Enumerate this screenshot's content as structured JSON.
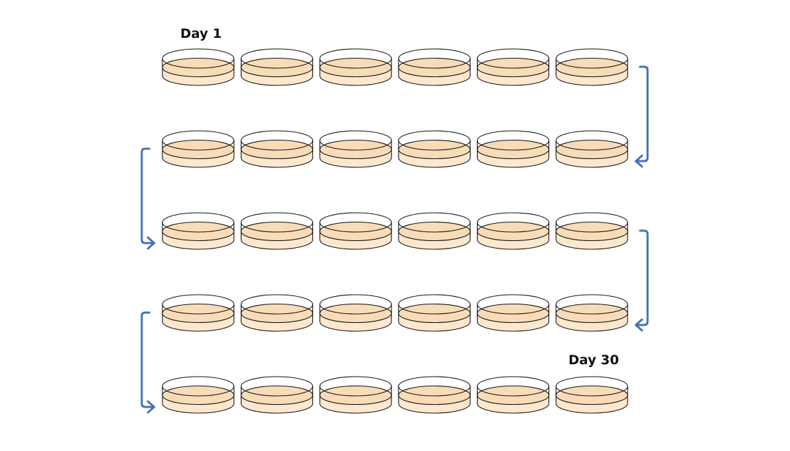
{
  "labels": {
    "start": "Day 1",
    "end": "Day 30"
  },
  "dishes": {
    "rows": 5,
    "per_row": 6,
    "total": 30
  },
  "flow": "serpentine",
  "colors": {
    "medium": "#f8dcb8",
    "medium_edge": "#fde8cf",
    "dish_outline": "#111111",
    "arrow": "#4472b3",
    "background": "#ffffff"
  },
  "icons": {
    "dish": "petri-dish-icon",
    "connector": "u-turn-arrow-icon"
  }
}
